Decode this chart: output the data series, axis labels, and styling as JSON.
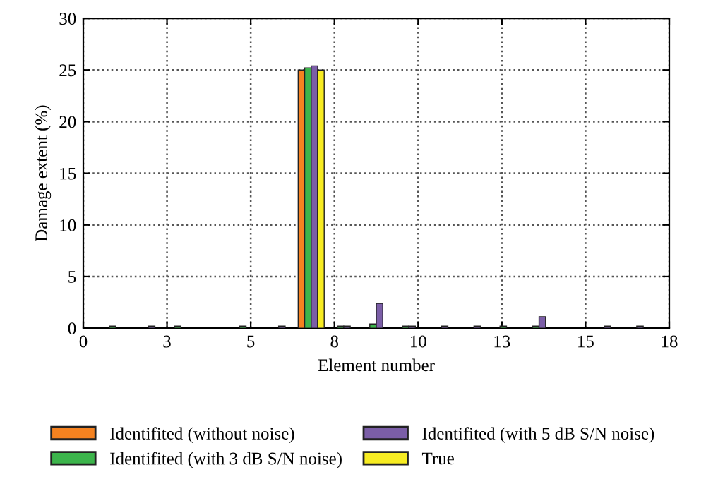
{
  "chart_data": {
    "type": "bar",
    "xlabel": "Element number",
    "ylabel": "Damage extent (%)",
    "x": [
      1,
      2,
      3,
      4,
      5,
      6,
      7,
      8,
      9,
      10,
      11,
      12,
      13,
      14,
      15,
      16,
      17
    ],
    "series": [
      {
        "name": "Identifited (without noise)",
        "color": "#f58220",
        "values": [
          null,
          null,
          null,
          null,
          null,
          null,
          25.0,
          null,
          null,
          null,
          null,
          null,
          null,
          null,
          null,
          null,
          null
        ]
      },
      {
        "name": "Identifited (with 3 dB S/N noise)",
        "color": "#3cb44b",
        "values": [
          0.2,
          null,
          0.2,
          null,
          0.2,
          null,
          25.2,
          0.2,
          0.4,
          0.2,
          null,
          null,
          0.2,
          0.2,
          null,
          null,
          null
        ]
      },
      {
        "name": "Identifited (with 5 dB S/N noise)",
        "color": "#7b5ea7",
        "values": [
          null,
          0.2,
          null,
          null,
          null,
          0.2,
          25.4,
          0.2,
          2.4,
          0.2,
          0.2,
          0.2,
          null,
          1.1,
          null,
          0.2,
          0.2
        ]
      },
      {
        "name": "True",
        "color": "#f7ec22",
        "values": [
          null,
          null,
          null,
          null,
          null,
          null,
          25.0,
          null,
          null,
          null,
          null,
          null,
          null,
          null,
          null,
          null,
          null
        ]
      }
    ],
    "xlim": [
      0,
      18
    ],
    "ylim": [
      0,
      30
    ],
    "xticks": [
      0,
      {
        "value": 2.5714,
        "label": "3"
      },
      {
        "value": 5.1429,
        "label": "5"
      },
      {
        "value": 7.7143,
        "label": "8"
      },
      {
        "value": 10.2857,
        "label": "10"
      },
      {
        "value": 12.8571,
        "label": "13"
      },
      {
        "value": 15.4286,
        "label": "15"
      },
      18
    ],
    "yticks": [
      0,
      5,
      10,
      15,
      20,
      25,
      30
    ],
    "grid": true,
    "line_style": "dotted",
    "legend": "bottom"
  }
}
